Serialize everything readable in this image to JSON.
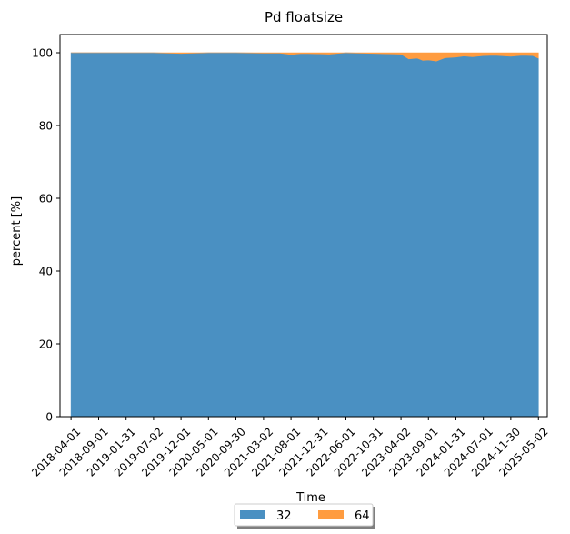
{
  "chart_data": {
    "type": "area",
    "stacked": true,
    "title": "Pd floatsize",
    "xlabel": "Time",
    "ylabel": "percent [%]",
    "ylim": [
      0,
      105
    ],
    "yticks": [
      0,
      20,
      40,
      60,
      80,
      100
    ],
    "xlim": [
      "2018-01-30",
      "2025-06-20"
    ],
    "xticks": [
      "2018-04-01",
      "2018-09-01",
      "2019-01-31",
      "2019-07-02",
      "2019-12-01",
      "2020-05-01",
      "2020-09-30",
      "2021-03-02",
      "2021-08-01",
      "2021-12-31",
      "2022-06-01",
      "2022-10-31",
      "2023-04-02",
      "2023-09-01",
      "2024-01-31",
      "2024-07-01",
      "2024-11-30",
      "2025-05-02"
    ],
    "x": [
      "2018-04-01",
      "2018-09-01",
      "2019-01-31",
      "2019-07-02",
      "2019-12-01",
      "2020-05-01",
      "2020-09-30",
      "2021-03-02",
      "2021-06-01",
      "2021-08-01",
      "2021-10-01",
      "2021-12-31",
      "2022-03-01",
      "2022-06-01",
      "2022-10-31",
      "2023-01-15",
      "2023-04-02",
      "2023-05-15",
      "2023-07-01",
      "2023-08-01",
      "2023-09-01",
      "2023-10-15",
      "2023-12-01",
      "2024-01-31",
      "2024-03-15",
      "2024-05-01",
      "2024-07-01",
      "2024-09-01",
      "2024-11-30",
      "2025-02-01",
      "2025-04-01",
      "2025-05-02"
    ],
    "series": [
      {
        "name": "32",
        "color": "#4a90c2",
        "values": [
          100,
          100,
          100,
          100,
          99.8,
          100,
          100,
          99.9,
          99.9,
          99.5,
          99.8,
          99.7,
          99.6,
          100,
          99.8,
          99.7,
          99.6,
          98.3,
          98.5,
          97.9,
          98.0,
          97.7,
          98.6,
          98.8,
          99.1,
          98.9,
          99.2,
          99.3,
          99.0,
          99.3,
          99.2,
          98.5
        ]
      },
      {
        "name": "64",
        "color": "#ff9c40",
        "values": [
          0,
          0,
          0,
          0,
          0.2,
          0,
          0,
          0.1,
          0.1,
          0.5,
          0.2,
          0.3,
          0.4,
          0,
          0.2,
          0.3,
          0.4,
          1.7,
          1.5,
          2.1,
          2.0,
          2.3,
          1.4,
          1.2,
          0.9,
          1.1,
          0.8,
          0.7,
          1.0,
          0.7,
          0.8,
          1.5
        ]
      }
    ],
    "legend": {
      "position": "bottom-center",
      "columns": 2,
      "entries": [
        "32",
        "64"
      ]
    },
    "grid": false
  }
}
